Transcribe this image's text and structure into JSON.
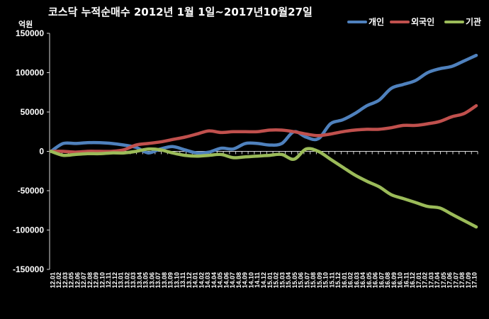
{
  "chart_data": {
    "type": "line",
    "title": "코스닥  누적순매수 2012년 1월 1일~2017년10월27일",
    "ylabel": "억원",
    "xlabel": "",
    "ylim": [
      -150000,
      150000
    ],
    "y_ticks": [
      "150000",
      "100000",
      "50000",
      "0",
      "-50000",
      "-100000",
      "-150000"
    ],
    "y_tick_values": [
      150000,
      100000,
      50000,
      0,
      -50000,
      -100000,
      -150000
    ],
    "grid": false,
    "legend_position": "top-right",
    "categories": [
      "12-01",
      "12-03",
      "12-05",
      "12-07",
      "12-09",
      "12-11",
      "13-01",
      "13-03",
      "13-05",
      "13-07",
      "13-09",
      "13-11",
      "14-01",
      "14-03",
      "14-05",
      "14-07",
      "14-09",
      "14-11",
      "15-01",
      "15-03",
      "15-05",
      "15-07",
      "15-09",
      "15-11",
      "16-01",
      "16-03",
      "16-05",
      "16-07",
      "16-09",
      "16-11",
      "17-01",
      "17-03",
      "17-05",
      "17-07",
      "17-09",
      "17-10"
    ],
    "x_ticks": [
      "12.01",
      "12.02",
      "12.03",
      "12.05",
      "12.06",
      "12.07",
      "12.08",
      "12.09",
      "12.10",
      "12.11",
      "12.12",
      "13.01",
      "13.02",
      "13.03",
      "13.04",
      "13.05",
      "13.06",
      "13.07",
      "13.08",
      "13.09",
      "13.10",
      "13.11",
      "13.12",
      "14.01",
      "14.02",
      "14.03",
      "14.04",
      "14.05",
      "14.06",
      "14.07",
      "14.08",
      "14.09",
      "14.10",
      "14.11",
      "14.12",
      "15.01",
      "15.02",
      "15.03",
      "15.04",
      "15.05",
      "15.06",
      "15.07",
      "15.08",
      "15.09",
      "15.10",
      "15.11",
      "15.12",
      "16.01",
      "16.02",
      "16.03",
      "16.04",
      "16.05",
      "16.06",
      "16.07",
      "16.08",
      "16.09",
      "16.10",
      "16.11",
      "16.12",
      "17.01",
      "17.02",
      "17.03",
      "17.04",
      "17.05",
      "17.06",
      "17.07",
      "17.08",
      "17.09",
      "17.10"
    ],
    "series": [
      {
        "name": "개인",
        "color": "#4F81BD",
        "values": [
          0,
          10000,
          10000,
          11000,
          11000,
          10000,
          8000,
          5000,
          -2000,
          3000,
          6000,
          2000,
          -2000,
          -1000,
          4000,
          3000,
          10000,
          10000,
          8000,
          10000,
          25000,
          18000,
          16000,
          35000,
          40000,
          48000,
          58000,
          65000,
          80000,
          85000,
          90000,
          100000,
          105000,
          108000,
          115000,
          122000
        ]
      },
      {
        "name": "외국인",
        "color": "#C0504D",
        "values": [
          0,
          0,
          -1000,
          0,
          0,
          0,
          2000,
          8000,
          10000,
          12000,
          15000,
          18000,
          22000,
          26000,
          24000,
          25000,
          25000,
          25000,
          27000,
          27000,
          25000,
          22000,
          20000,
          22000,
          25000,
          27000,
          28000,
          28000,
          30000,
          33000,
          33000,
          35000,
          38000,
          44000,
          48000,
          58000
        ]
      },
      {
        "name": "기관",
        "color": "#9BBB59",
        "values": [
          0,
          -5000,
          -4000,
          -3000,
          -3000,
          -2000,
          -2000,
          0,
          3000,
          2000,
          -2000,
          -5000,
          -6000,
          -5000,
          -4000,
          -8000,
          -7000,
          -6000,
          -5000,
          -4000,
          -10000,
          3000,
          0,
          -10000,
          -20000,
          -30000,
          -38000,
          -45000,
          -55000,
          -60000,
          -65000,
          -70000,
          -72000,
          -80000,
          -88000,
          -96000
        ]
      }
    ]
  }
}
